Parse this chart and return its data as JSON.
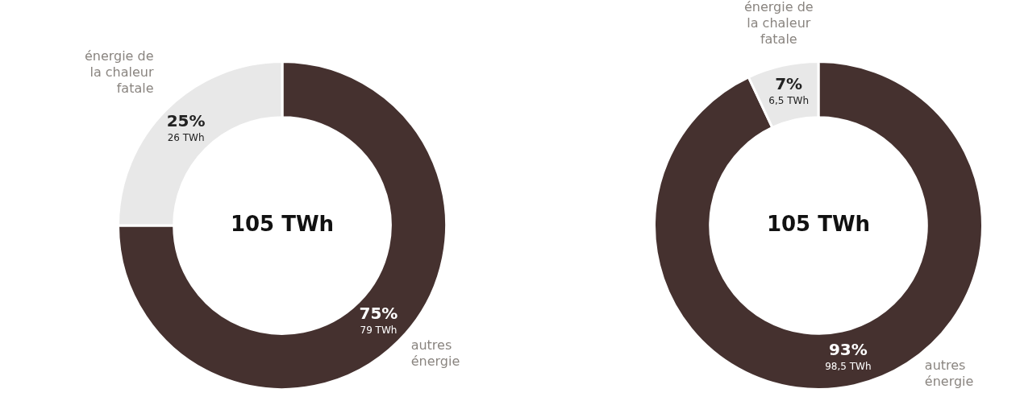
{
  "chart_data": [
    {
      "type": "donut",
      "categories": [
        "autres énergie",
        "énergie de la chaleur fatale"
      ],
      "values": [
        75,
        25
      ],
      "colors": [
        "#45312f",
        "#e8e8e8"
      ],
      "value_labels": [
        "75%",
        "25%"
      ],
      "annotations": [
        "105 TWh",
        {
          "text": "79 TWh",
          "x": "autres énergie"
        },
        {
          "text": "26 TWh",
          "x": "énergie de la chaleur fatale"
        }
      ]
    },
    {
      "type": "donut",
      "categories": [
        "autres énergie",
        "énergie de la chaleur fatale"
      ],
      "values": [
        93,
        7
      ],
      "colors": [
        "#45312f",
        "#e8e8e8"
      ],
      "value_labels": [
        "93%",
        "7%"
      ],
      "annotations": [
        "105 TWh",
        {
          "text": "98,5 TWh",
          "x": "autres énergie"
        },
        {
          "text": "6,5 TWh",
          "x": "énergie de la chaleur fatale"
        }
      ]
    }
  ]
}
